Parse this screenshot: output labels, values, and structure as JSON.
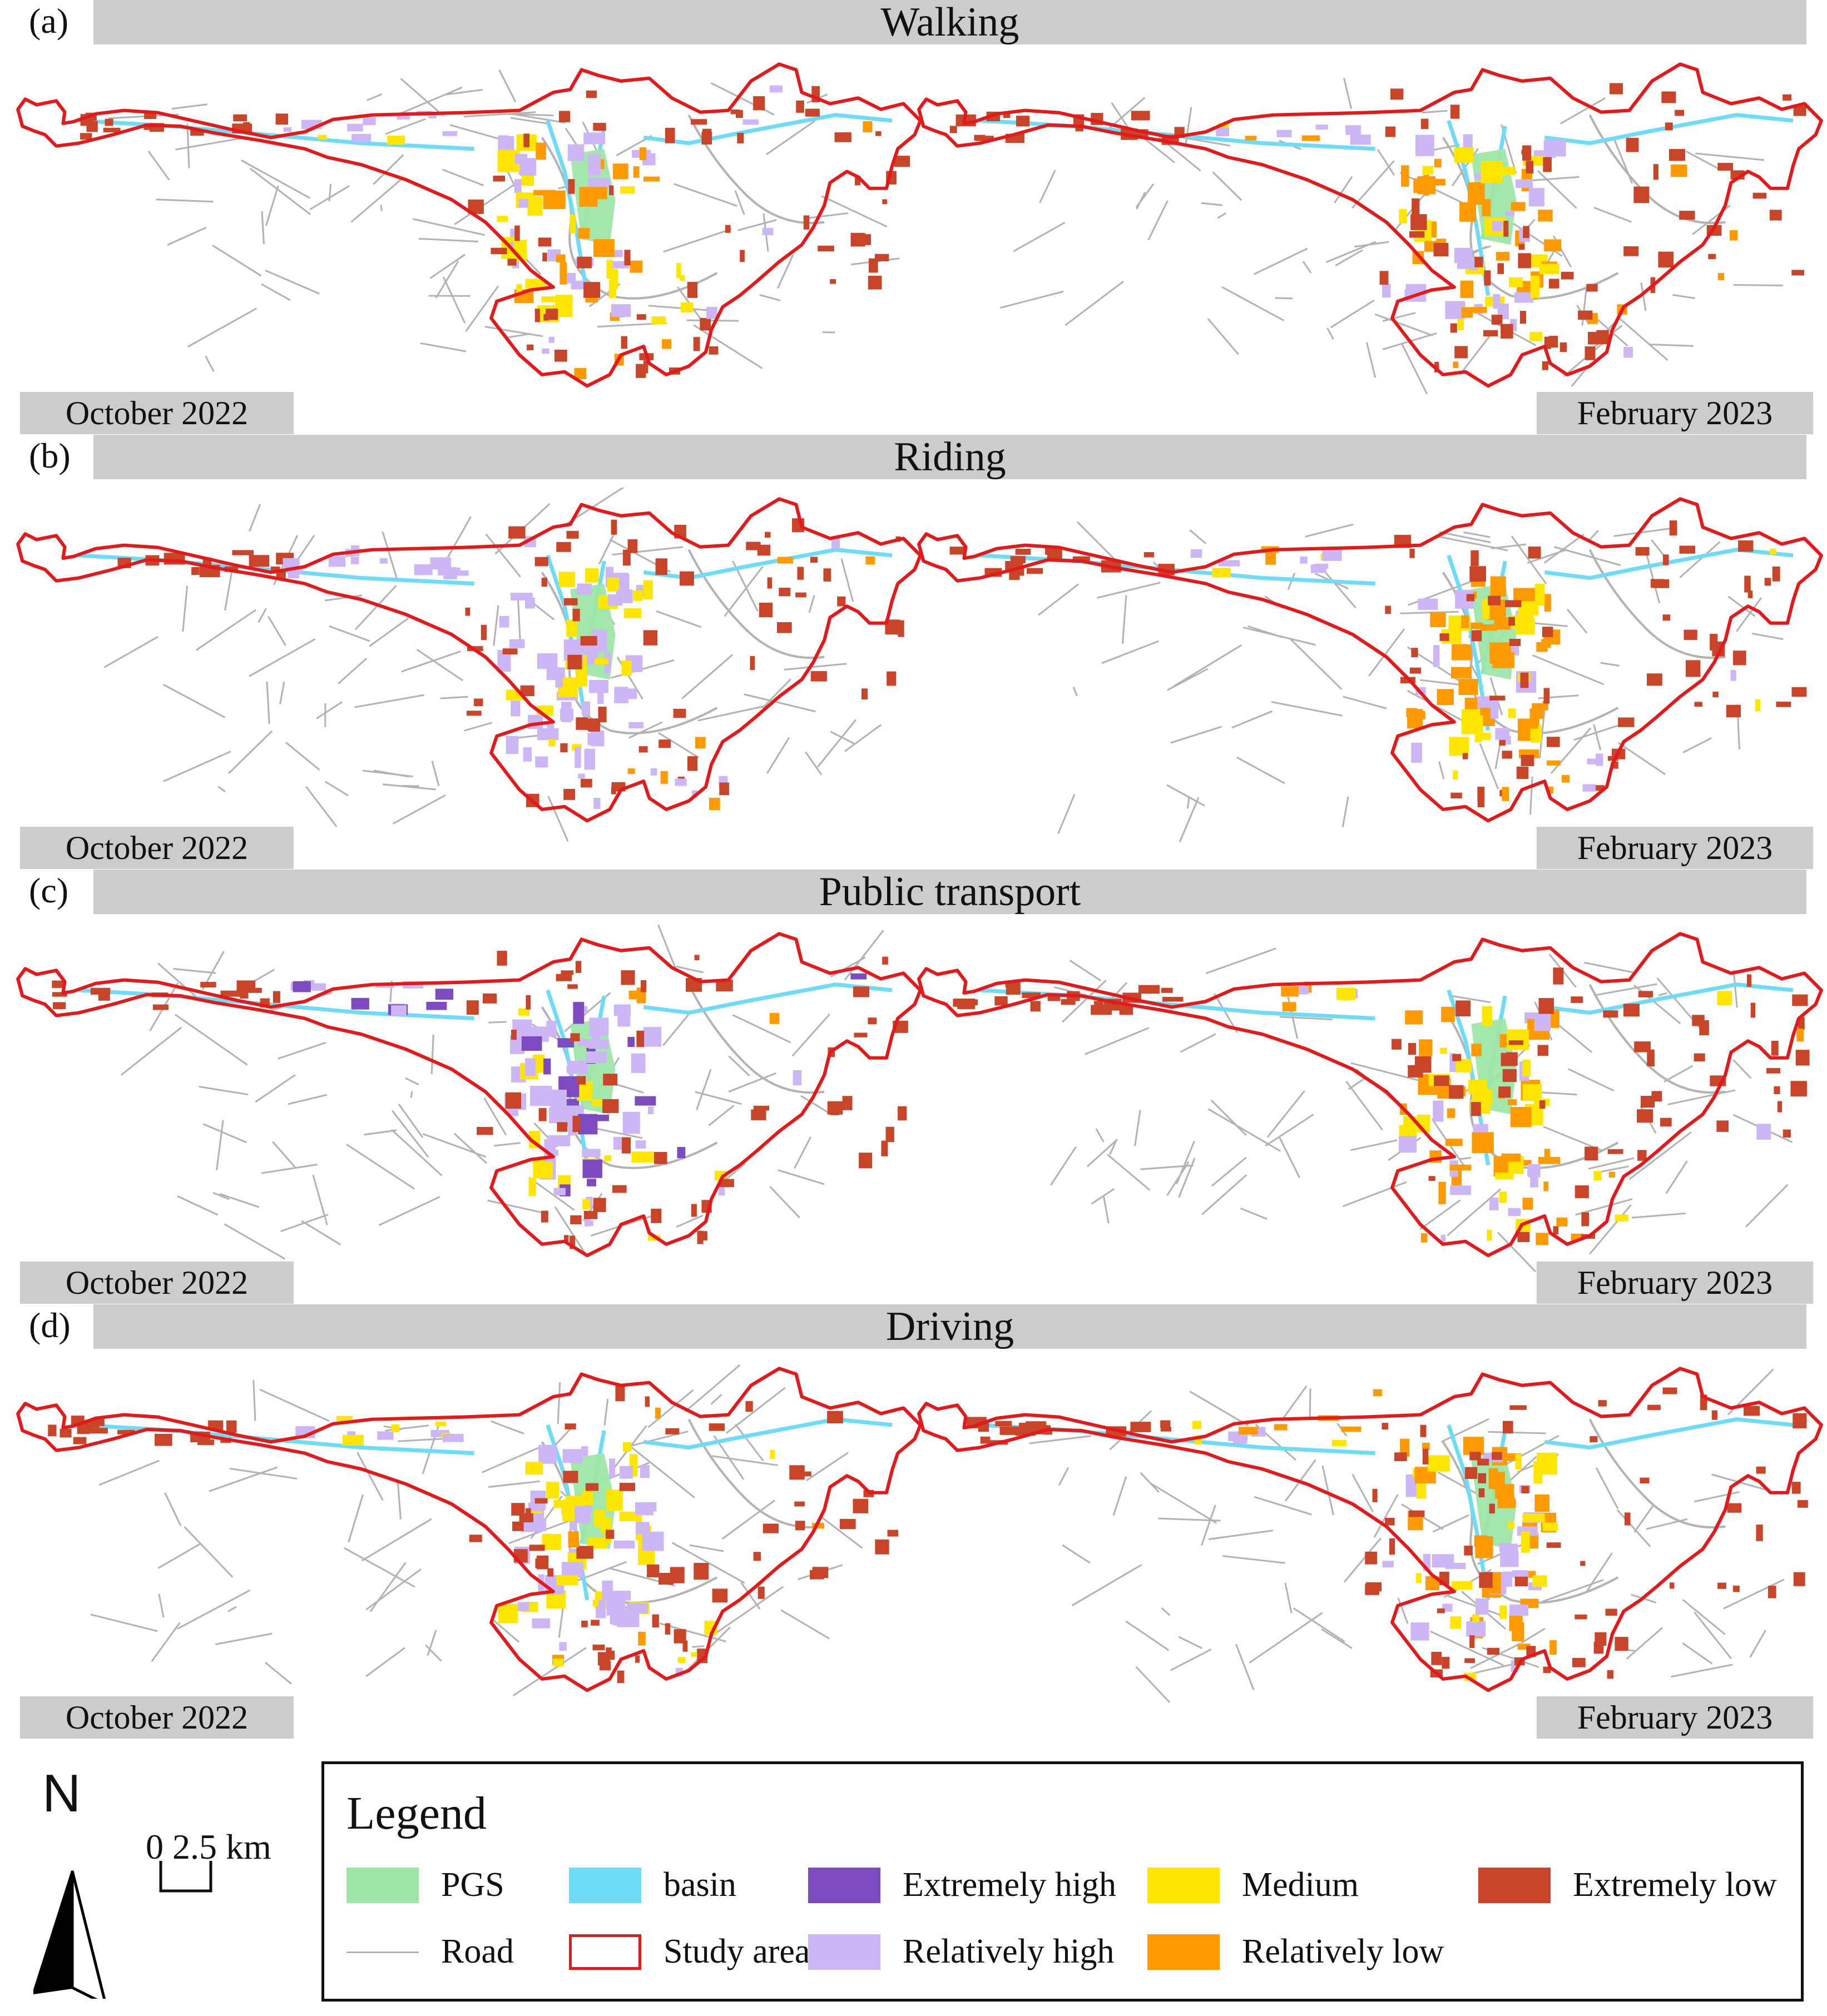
{
  "panels": [
    {
      "letter": "(a)",
      "title": "Walking",
      "left_date": "October 2022",
      "right_date": "February 2023"
    },
    {
      "letter": "(b)",
      "title": "Riding",
      "left_date": "October 2022",
      "right_date": "February 2023"
    },
    {
      "letter": "(c)",
      "title": "Public transport",
      "left_date": "October 2022",
      "right_date": "February 2023"
    },
    {
      "letter": "(d)",
      "title": "Driving",
      "left_date": "October 2022",
      "right_date": "February 2023"
    }
  ],
  "north_label": "N",
  "scale": {
    "label": "0 2.5 km"
  },
  "legend": {
    "title": "Legend",
    "items": [
      {
        "label": "PGS",
        "color": "#9ee6a8",
        "kind": "fill"
      },
      {
        "label": "basin",
        "color": "#6fdcf7",
        "kind": "fill"
      },
      {
        "label": "Extremely high",
        "color": "#7b4bbf",
        "kind": "fill"
      },
      {
        "label": "Medium",
        "color": "#ffe600",
        "kind": "fill"
      },
      {
        "label": "Extremely low",
        "color": "#c8452a",
        "kind": "fill"
      },
      {
        "label": "Road",
        "color": "#b3b3b3",
        "kind": "line"
      },
      {
        "label": "Study area",
        "color": "#e31a1c",
        "kind": "outline"
      },
      {
        "label": "Relatively high",
        "color": "#cdb6f5",
        "kind": "fill"
      },
      {
        "label": "Relatively low",
        "color": "#ff9a00",
        "kind": "fill"
      }
    ]
  }
}
